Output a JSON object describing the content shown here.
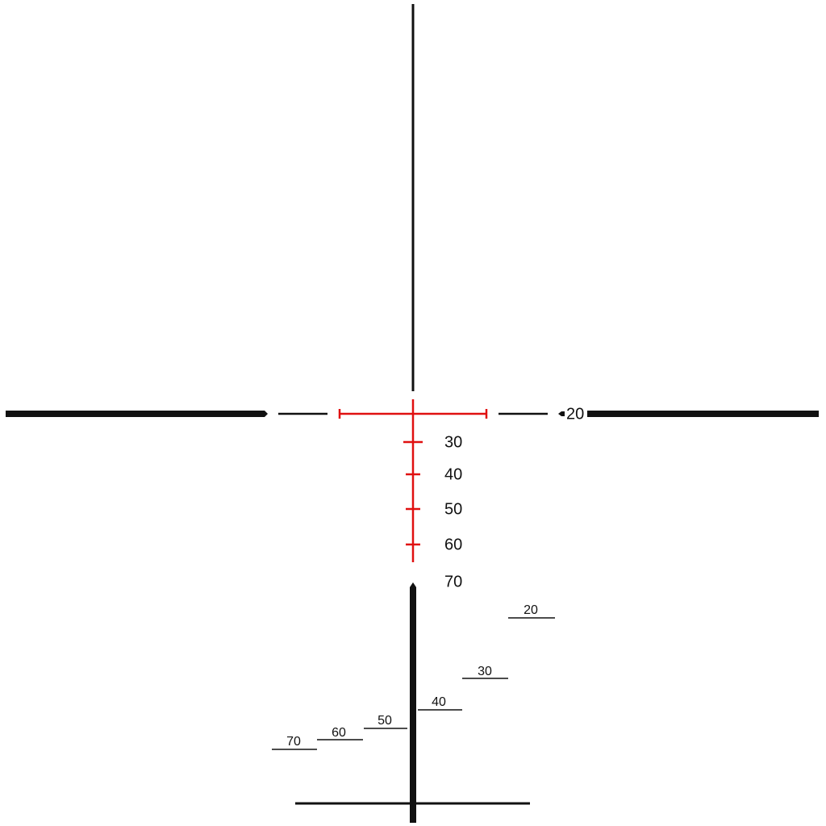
{
  "holdover": [
    "20",
    "30",
    "40",
    "50",
    "60",
    "70"
  ],
  "windage": [
    "20",
    "30",
    "40",
    "50",
    "60",
    "70"
  ]
}
